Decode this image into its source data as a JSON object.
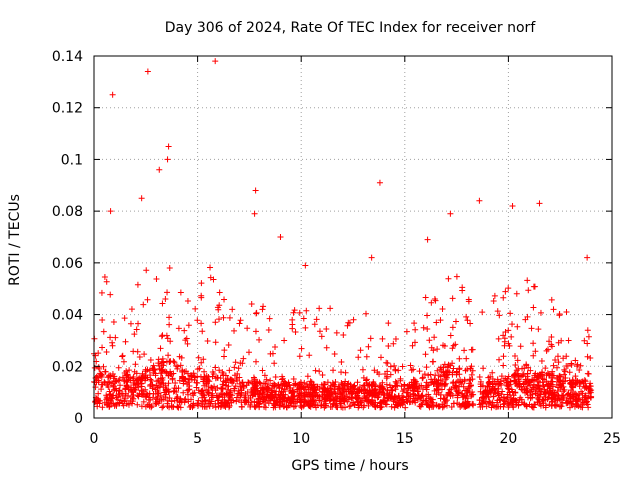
{
  "chart_data": {
    "type": "scatter",
    "title": "Day 306 of 2024, Rate Of TEC Index for receiver norf",
    "xlabel": "GPS time / hours",
    "ylabel": "ROTI / TECUs",
    "xlim": [
      0,
      25
    ],
    "ylim": [
      0,
      0.14
    ],
    "xticks": [
      0,
      5,
      10,
      15,
      20,
      25
    ],
    "yticks": [
      0,
      0.02,
      0.04,
      0.06,
      0.08,
      0.1,
      0.12,
      0.14
    ],
    "xtick_labels": [
      "0",
      "5",
      "10",
      "15",
      "20",
      "25"
    ],
    "ytick_labels": [
      "0",
      "0.02",
      "0.04",
      "0.06",
      "0.08",
      "0.1",
      "0.12",
      "0.14"
    ],
    "grid": true,
    "marker": "+",
    "color": "#ff0000",
    "data_gap_hours": [
      18.3,
      18.6
    ],
    "outliers": [
      {
        "x": 0.9,
        "y": 0.125
      },
      {
        "x": 2.6,
        "y": 0.134
      },
      {
        "x": 5.85,
        "y": 0.138
      },
      {
        "x": 3.6,
        "y": 0.105
      },
      {
        "x": 3.55,
        "y": 0.1
      },
      {
        "x": 3.15,
        "y": 0.096
      },
      {
        "x": 13.8,
        "y": 0.091
      },
      {
        "x": 7.8,
        "y": 0.088
      },
      {
        "x": 2.3,
        "y": 0.085
      },
      {
        "x": 18.6,
        "y": 0.084
      },
      {
        "x": 21.5,
        "y": 0.083
      },
      {
        "x": 20.2,
        "y": 0.082
      },
      {
        "x": 0.8,
        "y": 0.08
      },
      {
        "x": 17.2,
        "y": 0.079
      },
      {
        "x": 7.75,
        "y": 0.079
      },
      {
        "x": 16.1,
        "y": 0.069
      },
      {
        "x": 13.4,
        "y": 0.062
      },
      {
        "x": 10.2,
        "y": 0.059
      },
      {
        "x": 23.8,
        "y": 0.062
      },
      {
        "x": 9.0,
        "y": 0.07
      }
    ],
    "envelope": [
      [
        0.0,
        0.02,
        0.05
      ],
      [
        0.5,
        0.018,
        0.055
      ],
      [
        1.0,
        0.016,
        0.05
      ],
      [
        1.5,
        0.015,
        0.04
      ],
      [
        2.0,
        0.016,
        0.05
      ],
      [
        2.5,
        0.018,
        0.06
      ],
      [
        3.0,
        0.02,
        0.06
      ],
      [
        3.5,
        0.022,
        0.065
      ],
      [
        4.0,
        0.02,
        0.055
      ],
      [
        4.5,
        0.018,
        0.045
      ],
      [
        5.0,
        0.016,
        0.055
      ],
      [
        5.5,
        0.016,
        0.06
      ],
      [
        6.0,
        0.016,
        0.055
      ],
      [
        6.5,
        0.015,
        0.05
      ],
      [
        7.0,
        0.014,
        0.045
      ],
      [
        7.5,
        0.014,
        0.05
      ],
      [
        8.0,
        0.014,
        0.045
      ],
      [
        8.5,
        0.013,
        0.04
      ],
      [
        9.0,
        0.013,
        0.045
      ],
      [
        9.5,
        0.013,
        0.04
      ],
      [
        10.0,
        0.013,
        0.045
      ],
      [
        10.5,
        0.013,
        0.04
      ],
      [
        11.0,
        0.013,
        0.045
      ],
      [
        11.5,
        0.013,
        0.045
      ],
      [
        12.0,
        0.013,
        0.04
      ],
      [
        12.5,
        0.013,
        0.04
      ],
      [
        13.0,
        0.013,
        0.04
      ],
      [
        13.5,
        0.013,
        0.045
      ],
      [
        14.0,
        0.013,
        0.04
      ],
      [
        14.5,
        0.013,
        0.035
      ],
      [
        15.0,
        0.013,
        0.035
      ],
      [
        15.5,
        0.014,
        0.04
      ],
      [
        16.0,
        0.016,
        0.05
      ],
      [
        16.5,
        0.018,
        0.055
      ],
      [
        17.0,
        0.02,
        0.065
      ],
      [
        17.5,
        0.018,
        0.055
      ],
      [
        18.0,
        0.016,
        0.05
      ],
      [
        18.3,
        0.015,
        0.045
      ],
      [
        18.6,
        0.015,
        0.045
      ],
      [
        19.0,
        0.015,
        0.045
      ],
      [
        19.5,
        0.016,
        0.05
      ],
      [
        20.0,
        0.016,
        0.055
      ],
      [
        20.5,
        0.017,
        0.05
      ],
      [
        21.0,
        0.017,
        0.055
      ],
      [
        21.5,
        0.018,
        0.06
      ],
      [
        22.0,
        0.017,
        0.05
      ],
      [
        22.5,
        0.016,
        0.045
      ],
      [
        23.0,
        0.015,
        0.05
      ],
      [
        23.5,
        0.015,
        0.045
      ],
      [
        24.0,
        0.014,
        0.04
      ]
    ]
  }
}
